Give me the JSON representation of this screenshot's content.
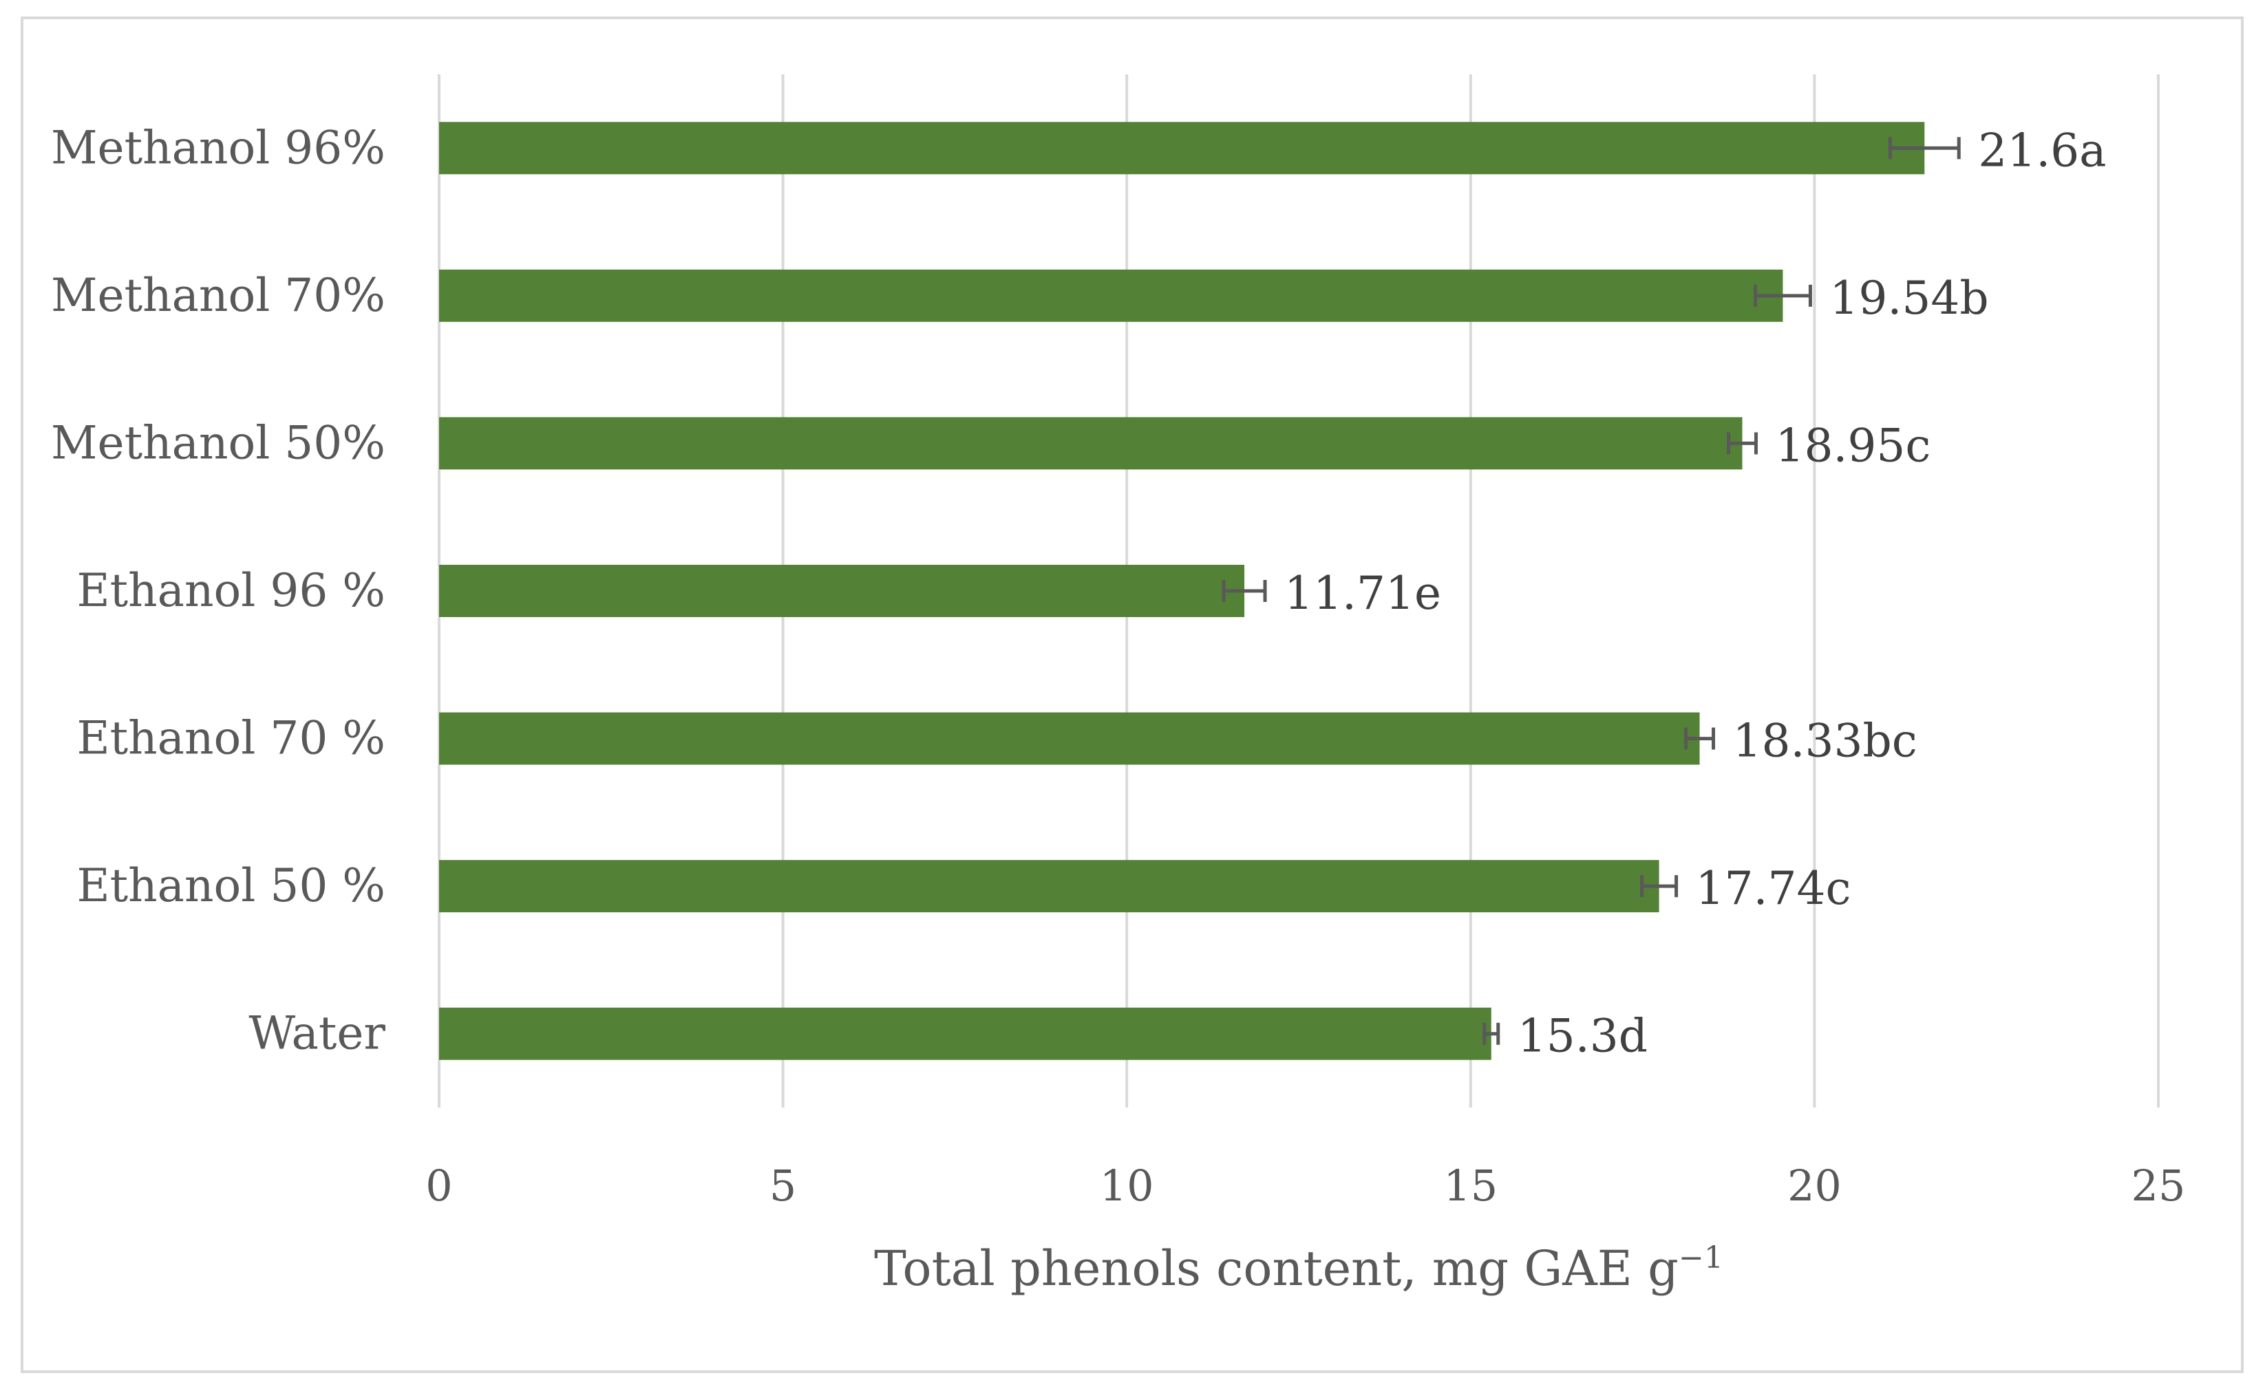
{
  "chart_data": {
    "type": "bar",
    "orientation": "horizontal",
    "categories": [
      "Methanol 96%",
      "Methanol 70%",
      "Methanol 50%",
      "Ethanol 96 %",
      "Ethanol 70 %",
      "Ethanol 50 %",
      "Water"
    ],
    "values": [
      21.6,
      19.54,
      18.95,
      11.71,
      18.33,
      17.74,
      15.3
    ],
    "errors": [
      0.5,
      0.4,
      0.2,
      0.3,
      0.2,
      0.25,
      0.1
    ],
    "data_labels": [
      "21.6a",
      "19.54b",
      "18.95c",
      "11.71e",
      "18.33bc",
      "17.74c",
      "15.3d"
    ],
    "xlabel": "Total phenols content, mg GAE g",
    "xlabel_sup": "−1",
    "ylabel": "",
    "xlim": [
      0,
      25
    ],
    "xticks": [
      0,
      5,
      10,
      15,
      20,
      25
    ],
    "grid": true,
    "bar_color": "#538135",
    "error_color": "#595959",
    "grid_color": "#d9d9d9"
  }
}
